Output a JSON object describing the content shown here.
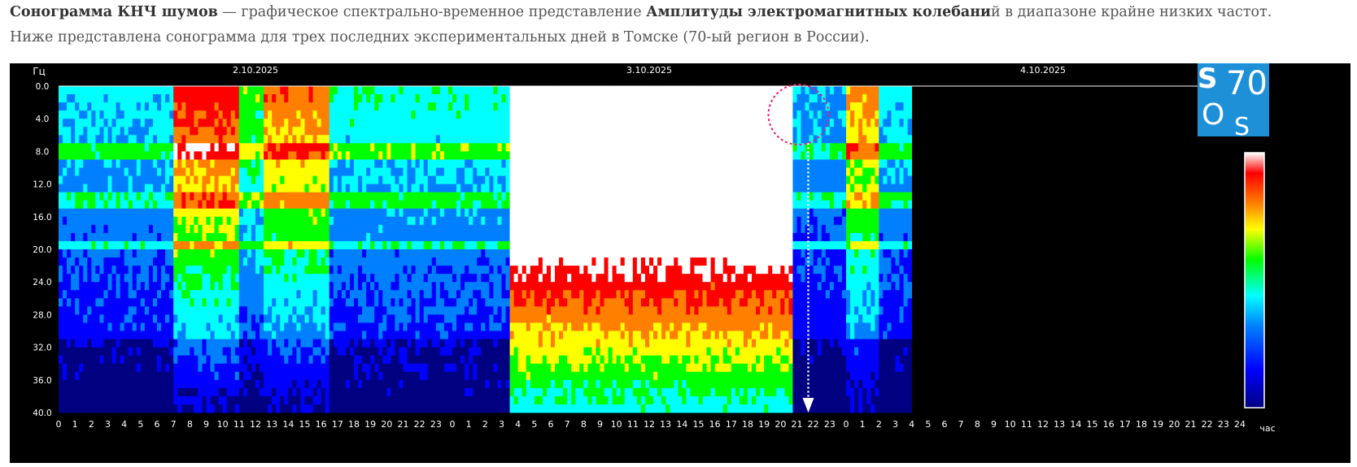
{
  "intro": {
    "line1_bold1": "Сонограмма КНЧ шумов",
    "line1_text1": " — графическое спектрально-временное представление ",
    "line1_bold2": "Амплитуды электромагнитных колебани",
    "line1_text2": "й в диапазоне крайне  низких частот.",
    "line2": "Ниже представлена сонограмма для трех последних экспериментальных дней в Томске (70-ый регион в России)."
  },
  "logo": {
    "text": "SOS 70"
  },
  "chart_data": {
    "type": "heatmap",
    "ylabel": "Гц",
    "xlabel": "час",
    "y_ticks": [
      "0.0",
      "4.0",
      "8.0",
      "12.0",
      "16.0",
      "20.0",
      "24.0",
      "28.0",
      "32.0",
      "36.0",
      "40.0"
    ],
    "ylim": [
      0,
      40
    ],
    "days": [
      "2.10.2025",
      "3.10.2025",
      "4.10.2025"
    ],
    "x_ticks": [
      "0",
      "1",
      "2",
      "3",
      "4",
      "5",
      "6",
      "7",
      "8",
      "9",
      "10",
      "11",
      "12",
      "13",
      "14",
      "15",
      "16",
      "17",
      "18",
      "19",
      "20",
      "21",
      "22",
      "23",
      "0",
      "1",
      "2",
      "3",
      "4",
      "5",
      "6",
      "7",
      "8",
      "9",
      "10",
      "11",
      "12",
      "13",
      "14",
      "15",
      "16",
      "17",
      "18",
      "19",
      "20",
      "21",
      "22",
      "23",
      "0",
      "1",
      "2",
      "3",
      "4",
      "5",
      "6",
      "7",
      "8",
      "9",
      "10",
      "11",
      "12",
      "13",
      "14",
      "15",
      "16",
      "17",
      "18",
      "19",
      "20",
      "21",
      "22",
      "23",
      "24"
    ],
    "xlim_hours": [
      0,
      72
    ],
    "data_end_hour": 52,
    "grid": false,
    "colorscale": [
      "#000080",
      "#0000ff",
      "#0080ff",
      "#00ffff",
      "#00ff00",
      "#ffff00",
      "#ff8000",
      "#ff0000",
      "#ffffff"
    ],
    "intensity_bands": [
      {
        "start_hour": 0,
        "end_hour": 6.8,
        "level": 0.35
      },
      {
        "start_hour": 6.8,
        "end_hour": 10.8,
        "level": 0.85
      },
      {
        "start_hour": 10.8,
        "end_hour": 12.5,
        "level": 0.5
      },
      {
        "start_hour": 12.5,
        "end_hour": 16.5,
        "level": 0.75
      },
      {
        "start_hour": 16.5,
        "end_hour": 27.5,
        "level": 0.4
      },
      {
        "start_hour": 27.5,
        "end_hour": 44.7,
        "level": 1.0
      },
      {
        "start_hour": 44.7,
        "end_hour": 47.8,
        "level": 0.3
      },
      {
        "start_hour": 47.8,
        "end_hour": 50,
        "level": 0.7
      },
      {
        "start_hour": 50,
        "end_hour": 52,
        "level": 0.35
      }
    ],
    "annotation": {
      "type": "circle-with-arrow",
      "hour": 45.1
    }
  }
}
